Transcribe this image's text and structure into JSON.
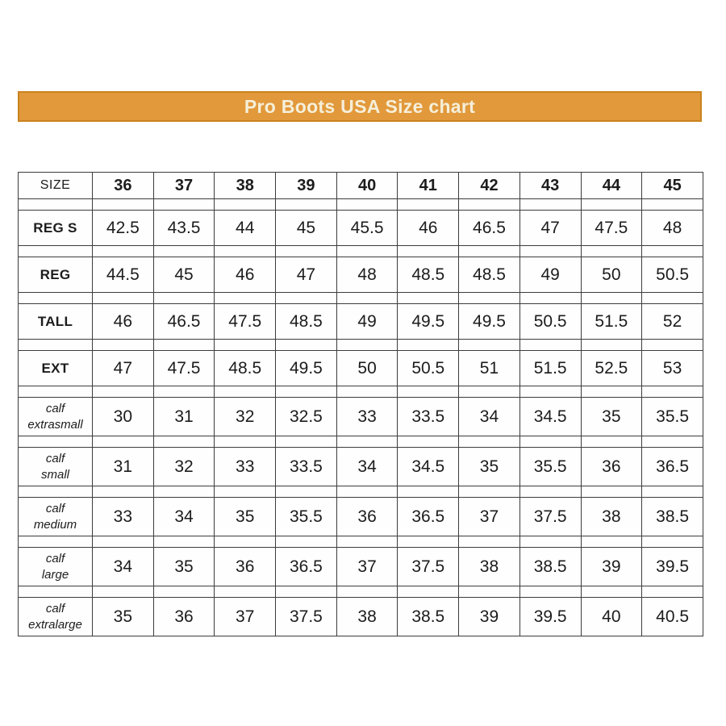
{
  "title": "Pro Boots USA Size chart",
  "colors": {
    "banner_bg": "#e2993b",
    "banner_border": "#ca831f",
    "banner_text": "#f5efd9",
    "table_border": "#3c3c3c",
    "text": "#1c1c1c",
    "background": "#ffffff"
  },
  "chart_data": {
    "type": "table",
    "title": "Pro Boots USA Size chart",
    "columns": [
      "SIZE",
      "36",
      "37",
      "38",
      "39",
      "40",
      "41",
      "42",
      "43",
      "44",
      "45"
    ],
    "rows": [
      {
        "label_lines": [
          "REG S"
        ],
        "style": "bold",
        "values": [
          "42.5",
          "43.5",
          "44",
          "45",
          "45.5",
          "46",
          "46.5",
          "47",
          "47.5",
          "48"
        ]
      },
      {
        "label_lines": [
          "REG"
        ],
        "style": "bold",
        "values": [
          "44.5",
          "45",
          "46",
          "47",
          "48",
          "48.5",
          "48.5",
          "49",
          "50",
          "50.5"
        ]
      },
      {
        "label_lines": [
          "TALL"
        ],
        "style": "bold",
        "values": [
          "46",
          "46.5",
          "47.5",
          "48.5",
          "49",
          "49.5",
          "49.5",
          "50.5",
          "51.5",
          "52"
        ]
      },
      {
        "label_lines": [
          "EXT"
        ],
        "style": "bold",
        "values": [
          "47",
          "47.5",
          "48.5",
          "49.5",
          "50",
          "50.5",
          "51",
          "51.5",
          "52.5",
          "53"
        ]
      },
      {
        "label_lines": [
          "calf",
          "extrasmall"
        ],
        "style": "italic",
        "values": [
          "30",
          "31",
          "32",
          "32.5",
          "33",
          "33.5",
          "34",
          "34.5",
          "35",
          "35.5"
        ]
      },
      {
        "label_lines": [
          "calf",
          "small"
        ],
        "style": "italic",
        "values": [
          "31",
          "32",
          "33",
          "33.5",
          "34",
          "34.5",
          "35",
          "35.5",
          "36",
          "36.5"
        ]
      },
      {
        "label_lines": [
          "calf",
          "medium"
        ],
        "style": "italic",
        "values": [
          "33",
          "34",
          "35",
          "35.5",
          "36",
          "36.5",
          "37",
          "37.5",
          "38",
          "38.5"
        ]
      },
      {
        "label_lines": [
          "calf",
          "large"
        ],
        "style": "italic",
        "values": [
          "34",
          "35",
          "36",
          "36.5",
          "37",
          "37.5",
          "38",
          "38.5",
          "39",
          "39.5"
        ]
      },
      {
        "label_lines": [
          "calf",
          "extralarge"
        ],
        "style": "italic",
        "values": [
          "35",
          "36",
          "37",
          "37.5",
          "38",
          "38.5",
          "39",
          "39.5",
          "40",
          "40.5"
        ]
      }
    ]
  }
}
